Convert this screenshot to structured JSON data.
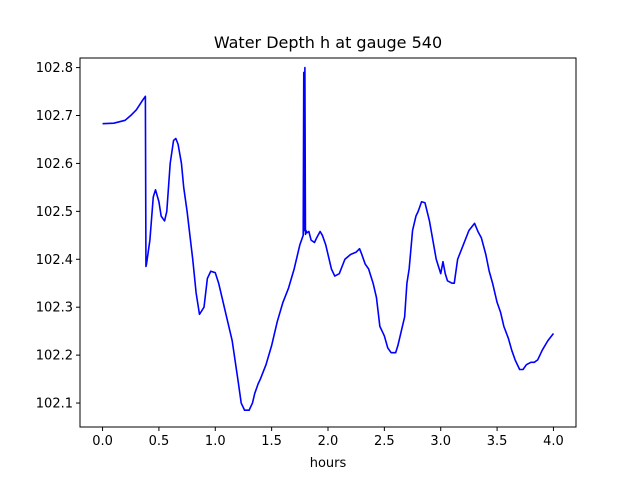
{
  "chart_data": {
    "type": "line",
    "title": "Water Depth h at gauge 540",
    "xlabel": "hours",
    "ylabel": "",
    "xlim": [
      -0.2,
      4.2
    ],
    "ylim": [
      102.05,
      102.82
    ],
    "xticks": [
      0.0,
      0.5,
      1.0,
      1.5,
      2.0,
      2.5,
      3.0,
      3.5,
      4.0
    ],
    "xtick_labels": [
      "0.0",
      "0.5",
      "1.0",
      "1.5",
      "2.0",
      "2.5",
      "3.0",
      "3.5",
      "4.0"
    ],
    "yticks": [
      102.1,
      102.2,
      102.3,
      102.4,
      102.5,
      102.6,
      102.7,
      102.8
    ],
    "ytick_labels": [
      "102.1",
      "102.2",
      "102.3",
      "102.4",
      "102.5",
      "102.6",
      "102.7",
      "102.8"
    ],
    "grid": false,
    "series": [
      {
        "color": "#0000ff",
        "x": [
          0.0,
          0.1,
          0.2,
          0.25,
          0.3,
          0.35,
          0.38,
          0.385,
          0.39,
          0.42,
          0.45,
          0.47,
          0.5,
          0.52,
          0.55,
          0.57,
          0.6,
          0.63,
          0.65,
          0.67,
          0.7,
          0.72,
          0.75,
          0.78,
          0.8,
          0.83,
          0.86,
          0.9,
          0.93,
          0.96,
          1.0,
          1.03,
          1.06,
          1.1,
          1.15,
          1.2,
          1.23,
          1.26,
          1.3,
          1.33,
          1.35,
          1.38,
          1.4,
          1.45,
          1.5,
          1.55,
          1.6,
          1.65,
          1.7,
          1.75,
          1.78,
          1.785,
          1.79,
          1.795,
          1.8,
          1.805,
          1.81,
          1.83,
          1.85,
          1.88,
          1.9,
          1.93,
          1.95,
          1.98,
          2.0,
          2.03,
          2.06,
          2.1,
          2.15,
          2.2,
          2.25,
          2.28,
          2.3,
          2.33,
          2.36,
          2.4,
          2.43,
          2.46,
          2.5,
          2.53,
          2.56,
          2.6,
          2.62,
          2.65,
          2.68,
          2.7,
          2.72,
          2.75,
          2.78,
          2.8,
          2.83,
          2.86,
          2.9,
          2.93,
          2.96,
          3.0,
          3.02,
          3.04,
          3.06,
          3.1,
          3.12,
          3.15,
          3.2,
          3.25,
          3.3,
          3.33,
          3.36,
          3.4,
          3.43,
          3.46,
          3.5,
          3.53,
          3.56,
          3.6,
          3.63,
          3.66,
          3.7,
          3.73,
          3.76,
          3.8,
          3.83,
          3.86,
          3.9,
          3.95,
          4.0
        ],
        "values": [
          102.683,
          102.684,
          102.69,
          102.7,
          102.712,
          102.73,
          102.74,
          102.385,
          102.39,
          102.44,
          102.53,
          102.545,
          102.52,
          102.49,
          102.48,
          102.5,
          102.6,
          102.648,
          102.652,
          102.64,
          102.6,
          102.55,
          102.5,
          102.44,
          102.4,
          102.33,
          102.285,
          102.3,
          102.36,
          102.375,
          102.372,
          102.35,
          102.32,
          102.28,
          102.23,
          102.15,
          102.1,
          102.085,
          102.085,
          102.1,
          102.12,
          102.14,
          102.15,
          102.18,
          102.22,
          102.27,
          102.31,
          102.34,
          102.38,
          102.43,
          102.45,
          102.79,
          102.46,
          102.8,
          102.452,
          102.46,
          102.455,
          102.458,
          102.44,
          102.435,
          102.445,
          102.458,
          102.45,
          102.43,
          102.41,
          102.38,
          102.365,
          102.37,
          102.4,
          102.41,
          102.415,
          102.422,
          102.41,
          102.39,
          102.38,
          102.35,
          102.32,
          102.26,
          102.24,
          102.215,
          102.205,
          102.205,
          102.22,
          102.25,
          102.28,
          102.35,
          102.38,
          102.46,
          102.49,
          102.5,
          102.52,
          102.518,
          102.48,
          102.44,
          102.4,
          102.37,
          102.395,
          102.37,
          102.355,
          102.35,
          102.35,
          102.4,
          102.43,
          102.46,
          102.475,
          102.458,
          102.445,
          102.41,
          102.375,
          102.35,
          102.31,
          102.29,
          102.26,
          102.235,
          102.21,
          102.19,
          102.17,
          102.17,
          102.18,
          102.185,
          102.185,
          102.19,
          102.21,
          102.23,
          102.245
        ]
      }
    ]
  }
}
